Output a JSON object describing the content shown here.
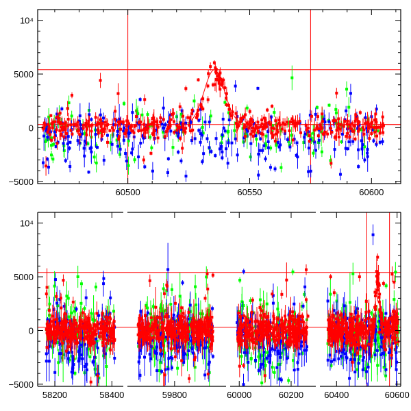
{
  "chart_data": [
    {
      "type": "scatter",
      "title": "",
      "xlabel": "",
      "ylabel": "",
      "xlim": [
        60463,
        60612
      ],
      "ylim": [
        -5200,
        11000
      ],
      "x_ticks": [
        60500,
        60550,
        60600
      ],
      "x_tick_labels": [
        "60500",
        "60550",
        "60600"
      ],
      "y_ticks": [
        -5000,
        0,
        5000,
        10000
      ],
      "y_tick_labels": [
        "−5000",
        "0",
        "5000",
        "10⁴"
      ],
      "reference_lines": {
        "horizontal": [
          5400,
          300
        ],
        "vertical": [
          60500,
          60575
        ]
      },
      "model_curve": {
        "type": "gaussian",
        "baseline": 300,
        "amplitude": 5100,
        "center": 60535.5,
        "sigma": 4.2,
        "color": "#ff0000"
      },
      "series": [
        {
          "color": "#ff0000",
          "approx_points": 420
        },
        {
          "color": "#0000ff",
          "approx_points": 260
        },
        {
          "color": "#00ff00",
          "approx_points": 140
        }
      ],
      "grid": false
    },
    {
      "type": "scatter",
      "title": "",
      "xlabel": "",
      "ylabel": "",
      "broken_x_axis": true,
      "segments": [
        {
          "xlim": [
            58140,
            58440
          ],
          "ticks": [
            58200,
            58400
          ],
          "tick_labels": [
            "58200",
            "58400"
          ]
        },
        {
          "xlim": [
            59690,
            59920
          ],
          "ticks": [
            59800
          ],
          "tick_labels": [
            "59800"
          ]
        },
        {
          "xlim": [
            59965,
            60295
          ],
          "ticks": [
            60000,
            60200
          ],
          "tick_labels": [
            "60000",
            "60200"
          ]
        },
        {
          "xlim": [
            60345,
            60612
          ],
          "ticks": [
            60400,
            60600
          ],
          "tick_labels": [
            "60400",
            "60600"
          ]
        }
      ],
      "ylim": [
        -5200,
        11000
      ],
      "y_ticks": [
        -5000,
        0,
        5000,
        10000
      ],
      "y_tick_labels": [
        "−5000",
        "0",
        "5000",
        "10⁴"
      ],
      "reference_lines": {
        "horizontal": [
          5400,
          300
        ],
        "vertical": [
          60500,
          60575
        ]
      },
      "series": [
        {
          "color": "#ff0000"
        },
        {
          "color": "#0000ff"
        },
        {
          "color": "#00ff00"
        }
      ],
      "grid": false
    }
  ]
}
